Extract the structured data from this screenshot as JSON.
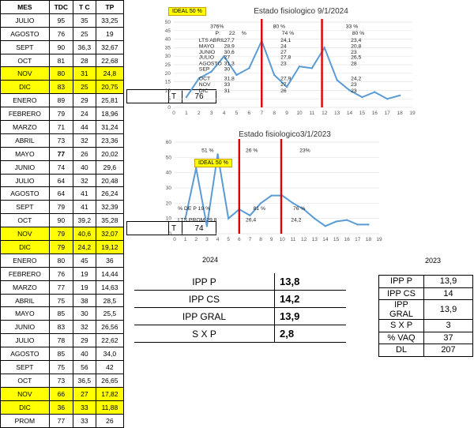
{
  "table": {
    "headers": [
      "MES",
      "TDC",
      "T C",
      "TP"
    ],
    "rows": [
      {
        "mes": "JULIO",
        "tdc": "95",
        "tc": "35",
        "tp": "33,25",
        "hl": false
      },
      {
        "mes": "AGOSTO",
        "tdc": "76",
        "tc": "25",
        "tp": "19",
        "hl": false
      },
      {
        "mes": "SEPT",
        "tdc": "90",
        "tc": "36,3",
        "tp": "32,67",
        "hl": false
      },
      {
        "mes": "OCT",
        "tdc": "81",
        "tc": "28",
        "tp": "22,68",
        "hl": false
      },
      {
        "mes": "NOV",
        "tdc": "80",
        "tc": "31",
        "tp": "24,8",
        "hl": true
      },
      {
        "mes": "DIC",
        "tdc": "83",
        "tc": "25",
        "tp": "20,75",
        "hl": true
      },
      {
        "mes": "ENERO",
        "tdc": "89",
        "tc": "29",
        "tp": "25,81",
        "hl": false
      },
      {
        "mes": "FEBRERO",
        "tdc": "79",
        "tc": "24",
        "tp": "18,96",
        "hl": false
      },
      {
        "mes": "MARZO",
        "tdc": "71",
        "tc": "44",
        "tp": "31,24",
        "hl": false
      },
      {
        "mes": "ABRIL",
        "tdc": "73",
        "tc": "32",
        "tp": "23,36",
        "hl": false
      },
      {
        "mes": "MAYO",
        "tdc": "77",
        "tc": "26",
        "tp": "20,02",
        "hl": false
      },
      {
        "mes": "JUNIO",
        "tdc": "74",
        "tc": "40",
        "tp": "29,6",
        "hl": false
      },
      {
        "mes": "JULIO",
        "tdc": "64",
        "tc": "32",
        "tp": "20,48",
        "hl": false
      },
      {
        "mes": "AGOSTO",
        "tdc": "64",
        "tc": "41",
        "tp": "26,24",
        "hl": false
      },
      {
        "mes": "SEPT",
        "tdc": "79",
        "tc": "41",
        "tp": "32,39",
        "hl": false
      },
      {
        "mes": "OCT",
        "tdc": "90",
        "tc": "39,2",
        "tp": "35,28",
        "hl": false
      },
      {
        "mes": "NOV",
        "tdc": "79",
        "tc": "40,6",
        "tp": "32,07",
        "hl": true
      },
      {
        "mes": "DIC",
        "tdc": "79",
        "tc": "24,2",
        "tp": "19,12",
        "hl": true
      },
      {
        "mes": "ENERO",
        "tdc": "80",
        "tc": "45",
        "tp": "36",
        "hl": false
      },
      {
        "mes": "FEBRERO",
        "tdc": "76",
        "tc": "19",
        "tp": "14,44",
        "hl": false
      },
      {
        "mes": "MARZO",
        "tdc": "77",
        "tc": "19",
        "tp": "14,63",
        "hl": false
      },
      {
        "mes": "ABRIL",
        "tdc": "75",
        "tc": "38",
        "tp": "28,5",
        "hl": false
      },
      {
        "mes": "MAYO",
        "tdc": "85",
        "tc": "30",
        "tp": "25,5",
        "hl": false
      },
      {
        "mes": "JUNIO",
        "tdc": "83",
        "tc": "32",
        "tp": "26,56",
        "hl": false
      },
      {
        "mes": "JULIO",
        "tdc": "78",
        "tc": "29",
        "tp": "22,62",
        "hl": false
      },
      {
        "mes": "AGOSTO",
        "tdc": "85",
        "tc": "40",
        "tp": "34,0",
        "hl": false
      },
      {
        "mes": "SEPT",
        "tdc": "75",
        "tc": "56",
        "tp": "42",
        "hl": false
      },
      {
        "mes": "OCT",
        "tdc": "73",
        "tc": "36,5",
        "tp": "26,65",
        "hl": false
      },
      {
        "mes": "NOV",
        "tdc": "66",
        "tc": "27",
        "tp": "17,82",
        "hl": true
      },
      {
        "mes": "DIC",
        "tdc": "36",
        "tc": "33",
        "tp": "11,88",
        "hl": true
      },
      {
        "mes": "PROM",
        "tdc": "77",
        "tc": "33",
        "tp": "26",
        "hl": false
      }
    ]
  },
  "side_box_1": {
    "label": "T",
    "value": "76"
  },
  "side_box_2": {
    "label": "T",
    "value": "74"
  },
  "chart_data": [
    {
      "type": "line",
      "title": "Estado fisiologico 9/1/2024",
      "badge": "IDEAL 50 %",
      "x": [
        1,
        2,
        3,
        4,
        5,
        6,
        7,
        8,
        9,
        10,
        11,
        12,
        13,
        14,
        15,
        16,
        17,
        18
      ],
      "series": [
        {
          "values": [
            6,
            17,
            21,
            30,
            19,
            23,
            39,
            19,
            12,
            24,
            23,
            35,
            16,
            10,
            6,
            9,
            5,
            7
          ]
        }
      ],
      "xlim": [
        0,
        19
      ],
      "ylim": [
        0,
        50
      ],
      "xticks": [
        "0",
        "1",
        "2",
        "3",
        "4",
        "5",
        "6",
        "7",
        "8",
        "9",
        "10",
        "11",
        "12",
        "13",
        "14",
        "15",
        "16",
        "17",
        "18",
        "19"
      ],
      "yticks": [
        "0",
        "5",
        "10",
        "15",
        "20",
        "25",
        "30",
        "35",
        "40",
        "45",
        "50"
      ],
      "vlines": [
        7,
        11.8
      ],
      "color_line": "#5b9bd5",
      "color_vline": "#e00000",
      "annotations": [
        {
          "text": "376%",
          "x": 2.9,
          "y": 46.5
        },
        {
          "text": "P:",
          "x": 3.3,
          "y": 42.5
        },
        {
          "text": "22",
          "x": 4.4,
          "y": 42.5
        },
        {
          "text": "%",
          "x": 5.4,
          "y": 42.5
        },
        {
          "text": "LTS ABRIL",
          "x": 2.0,
          "y": 38.5
        },
        {
          "text": "27,7",
          "x": 4.0,
          "y": 38.5
        },
        {
          "text": "MAYO",
          "x": 2.0,
          "y": 35.0
        },
        {
          "text": "28,9",
          "x": 4.0,
          "y": 35.0
        },
        {
          "text": "JUNIO",
          "x": 2.0,
          "y": 31.5
        },
        {
          "text": "30,6",
          "x": 4.0,
          "y": 31.5
        },
        {
          "text": "JULIO",
          "x": 2.0,
          "y": 28.5
        },
        {
          "text": "27",
          "x": 4.0,
          "y": 28.5
        },
        {
          "text": "AGOSTO",
          "x": 2.0,
          "y": 24.8
        },
        {
          "text": "31,3",
          "x": 4.0,
          "y": 24.8
        },
        {
          "text": "SEP",
          "x": 2.0,
          "y": 21.6
        },
        {
          "text": "30",
          "x": 4.0,
          "y": 21.6
        },
        {
          "text": "OCT",
          "x": 2.0,
          "y": 16.0
        },
        {
          "text": "31,8",
          "x": 4.0,
          "y": 16.0
        },
        {
          "text": "NOV",
          "x": 2.0,
          "y": 12.4
        },
        {
          "text": "33",
          "x": 4.0,
          "y": 12.4
        },
        {
          "text": "DIC",
          "x": 2.0,
          "y": 8.8
        },
        {
          "text": "31",
          "x": 4.0,
          "y": 8.8
        },
        {
          "text": "80 %",
          "x": 7.9,
          "y": 46.5
        },
        {
          "text": "74 %",
          "x": 8.6,
          "y": 42.5
        },
        {
          "text": "24,1",
          "x": 8.5,
          "y": 38.5
        },
        {
          "text": "24",
          "x": 8.5,
          "y": 35.0
        },
        {
          "text": "27",
          "x": 8.5,
          "y": 31.5
        },
        {
          "text": "27,8",
          "x": 8.5,
          "y": 28.5
        },
        {
          "text": "23",
          "x": 8.5,
          "y": 24.8
        },
        {
          "text": "27,9",
          "x": 8.5,
          "y": 16.0
        },
        {
          "text": "27",
          "x": 8.5,
          "y": 12.4
        },
        {
          "text": "26",
          "x": 8.5,
          "y": 8.8
        },
        {
          "text": "33 %",
          "x": 13.7,
          "y": 46.5
        },
        {
          "text": "80 %",
          "x": 14.2,
          "y": 42.5
        },
        {
          "text": "23,4",
          "x": 14.1,
          "y": 38.5
        },
        {
          "text": "20,8",
          "x": 14.1,
          "y": 35.0
        },
        {
          "text": "23",
          "x": 14.1,
          "y": 31.5
        },
        {
          "text": "26,5",
          "x": 14.1,
          "y": 28.5
        },
        {
          "text": "28",
          "x": 14.1,
          "y": 24.8
        },
        {
          "text": "24,2",
          "x": 14.1,
          "y": 16.0
        },
        {
          "text": "23",
          "x": 14.1,
          "y": 12.4
        },
        {
          "text": "23",
          "x": 14.1,
          "y": 8.8
        }
      ]
    },
    {
      "type": "line",
      "title": "Estado fisiologico3/1/2023",
      "badge": "IDEAL 50 %",
      "x": [
        1,
        2,
        3,
        4,
        5,
        6,
        7,
        8,
        9,
        10,
        11,
        12,
        13,
        14,
        15,
        16,
        17,
        18
      ],
      "series": [
        {
          "values": [
            10,
            43,
            5,
            52,
            10,
            16,
            12,
            20,
            25,
            25,
            20,
            16,
            10,
            5,
            8,
            9,
            6,
            6
          ]
        }
      ],
      "xlim": [
        0,
        19
      ],
      "ylim": [
        0,
        60
      ],
      "xticks": [
        "0",
        "1",
        "2",
        "3",
        "4",
        "5",
        "6",
        "7",
        "8",
        "9",
        "10",
        "11",
        "12",
        "13",
        "14",
        "15",
        "16",
        "17",
        "18",
        "19"
      ],
      "yticks": [
        "0",
        "10",
        "20",
        "30",
        "40",
        "50",
        "60"
      ],
      "vlines": [
        6,
        9.9
      ],
      "color_line": "#5b9bd5",
      "color_vline": "#e00000",
      "annotations": [
        {
          "text": "51 %",
          "x": 2.5,
          "y": 53.5
        },
        {
          "text": "26 %",
          "x": 6.6,
          "y": 53.5
        },
        {
          "text": "23%",
          "x": 11.6,
          "y": 53.5
        },
        {
          "text": "% DE P 19 %",
          "x": 0.3,
          "y": 15.5
        },
        {
          "text": "81 %",
          "x": 7.3,
          "y": 15.5
        },
        {
          "text": "76 %",
          "x": 11.0,
          "y": 15.5
        },
        {
          "text": "LTS PROM 29,8",
          "x": 0.3,
          "y": 8.0
        },
        {
          "text": "26,4",
          "x": 6.6,
          "y": 8.0
        },
        {
          "text": "24,2",
          "x": 10.8,
          "y": 8.0
        }
      ]
    }
  ],
  "ipp2024": {
    "year": "2024",
    "rows": [
      {
        "k": "IPP P",
        "v": "13,8"
      },
      {
        "k": "IPP CS",
        "v": "14,2"
      },
      {
        "k": "IPP GRAL",
        "v": "13,9"
      },
      {
        "k": "S X P",
        "v": "2,8"
      }
    ]
  },
  "ipp2023": {
    "year": "2023",
    "rows": [
      {
        "k": "IPP P",
        "v": "13,9"
      },
      {
        "k": "IPP CS",
        "v": "14"
      },
      {
        "k": "IPP GRAL",
        "v": "13,9"
      },
      {
        "k": "S X P",
        "v": "3"
      },
      {
        "k": "% VAQ",
        "v": "37"
      },
      {
        "k": "DL",
        "v": "207"
      }
    ]
  }
}
